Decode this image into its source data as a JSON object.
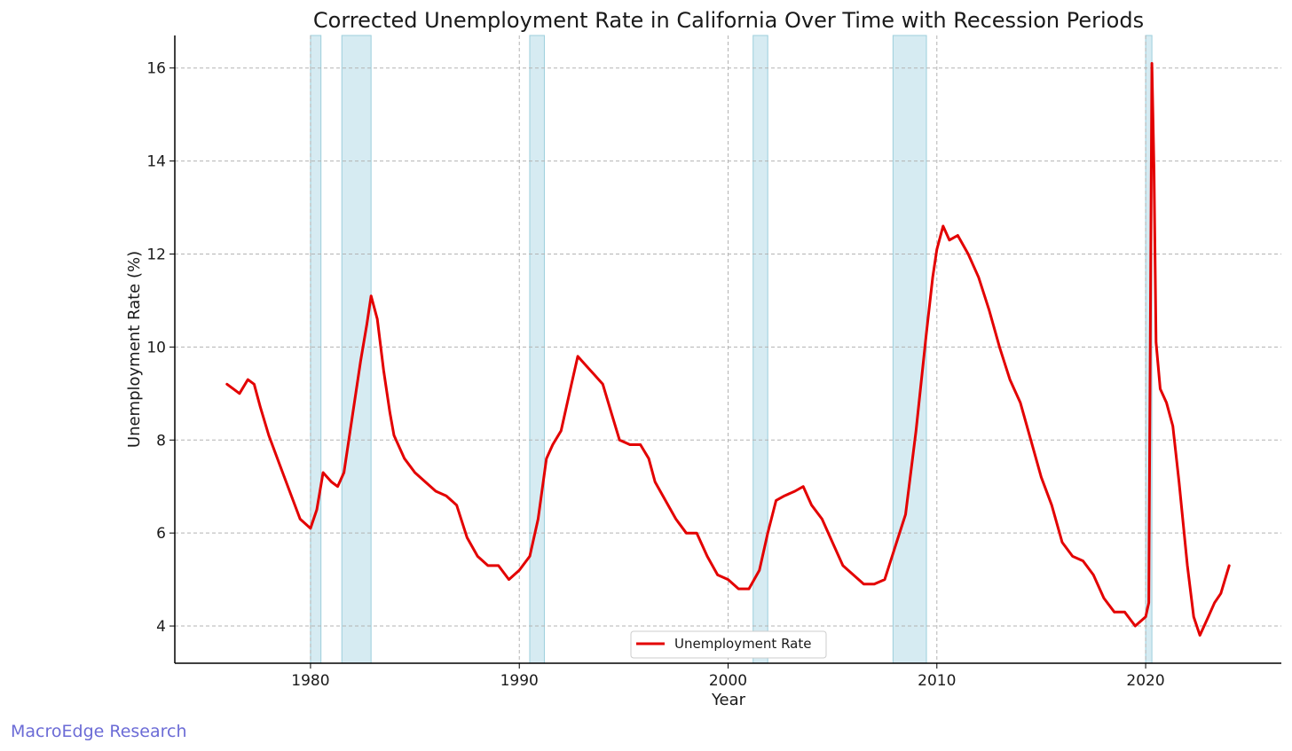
{
  "chart_data": {
    "type": "line",
    "title": "Corrected Unemployment Rate in California Over Time with Recession Periods",
    "xlabel": "Year",
    "ylabel": "Unemployment Rate (%)",
    "xlim": [
      1973.5,
      2026.5
    ],
    "ylim": [
      3.2,
      16.7
    ],
    "x_ticks": [
      1980,
      1990,
      2000,
      2010,
      2020
    ],
    "y_ticks": [
      4,
      6,
      8,
      10,
      12,
      14,
      16
    ],
    "grid": true,
    "legend": "bottom-center",
    "recessions": [
      [
        1980.0,
        1980.5
      ],
      [
        1981.5,
        1982.9
      ],
      [
        1990.5,
        1991.2
      ],
      [
        2001.2,
        2001.9
      ],
      [
        2007.9,
        2009.5
      ],
      [
        2020.0,
        2020.3
      ]
    ],
    "series": [
      {
        "name": "Unemployment Rate",
        "color": "#e30000",
        "x": [
          1976.0,
          1976.3,
          1976.6,
          1977.0,
          1977.3,
          1977.6,
          1978.0,
          1978.5,
          1979.0,
          1979.5,
          1980.0,
          1980.3,
          1980.6,
          1981.0,
          1981.3,
          1981.6,
          1982.0,
          1982.4,
          1982.7,
          1982.9,
          1983.2,
          1983.5,
          1983.8,
          1984.0,
          1984.5,
          1985.0,
          1985.5,
          1986.0,
          1986.5,
          1987.0,
          1987.5,
          1988.0,
          1988.5,
          1989.0,
          1989.5,
          1990.0,
          1990.5,
          1990.9,
          1991.3,
          1991.6,
          1992.0,
          1992.5,
          1992.8,
          1993.2,
          1993.6,
          1994.0,
          1994.4,
          1994.8,
          1995.3,
          1995.8,
          1996.2,
          1996.5,
          1997.0,
          1997.5,
          1998.0,
          1998.5,
          1999.0,
          1999.5,
          2000.0,
          2000.5,
          2001.0,
          2001.5,
          2001.9,
          2002.3,
          2002.7,
          2003.2,
          2003.6,
          2004.0,
          2004.5,
          2005.0,
          2005.5,
          2006.0,
          2006.5,
          2007.0,
          2007.5,
          2008.0,
          2008.5,
          2009.0,
          2009.5,
          2009.8,
          2010.0,
          2010.3,
          2010.6,
          2011.0,
          2011.5,
          2012.0,
          2012.5,
          2013.0,
          2013.5,
          2014.0,
          2014.5,
          2015.0,
          2015.5,
          2016.0,
          2016.5,
          2017.0,
          2017.5,
          2018.0,
          2018.5,
          2019.0,
          2019.5,
          2020.0,
          2020.15,
          2020.3,
          2020.4,
          2020.5,
          2020.7,
          2021.0,
          2021.3,
          2021.6,
          2022.0,
          2022.3,
          2022.6,
          2023.0,
          2023.3,
          2023.6,
          2024.0
        ],
        "values": [
          9.2,
          9.1,
          9.0,
          9.3,
          9.2,
          8.7,
          8.1,
          7.5,
          6.9,
          6.3,
          6.1,
          6.5,
          7.3,
          7.1,
          7.0,
          7.3,
          8.5,
          9.7,
          10.5,
          11.1,
          10.6,
          9.5,
          8.6,
          8.1,
          7.6,
          7.3,
          7.1,
          6.9,
          6.8,
          6.6,
          5.9,
          5.5,
          5.3,
          5.3,
          5.0,
          5.2,
          5.5,
          6.3,
          7.6,
          7.9,
          8.2,
          9.2,
          9.8,
          9.6,
          9.4,
          9.2,
          8.6,
          8.0,
          7.9,
          7.9,
          7.6,
          7.1,
          6.7,
          6.3,
          6.0,
          6.0,
          5.5,
          5.1,
          5.0,
          4.8,
          4.8,
          5.2,
          6.0,
          6.7,
          6.8,
          6.9,
          7.0,
          6.6,
          6.3,
          5.8,
          5.3,
          5.1,
          4.9,
          4.9,
          5.0,
          5.7,
          6.4,
          8.2,
          10.3,
          11.5,
          12.1,
          12.6,
          12.3,
          12.4,
          12.0,
          11.5,
          10.8,
          10.0,
          9.3,
          8.8,
          8.0,
          7.2,
          6.6,
          5.8,
          5.5,
          5.4,
          5.1,
          4.6,
          4.3,
          4.3,
          4.0,
          4.2,
          4.5,
          16.1,
          13.8,
          10.1,
          9.1,
          8.8,
          8.3,
          7.1,
          5.3,
          4.2,
          3.8,
          4.2,
          4.5,
          4.7,
          5.3
        ]
      }
    ]
  },
  "watermark": "MacroEdge Research"
}
